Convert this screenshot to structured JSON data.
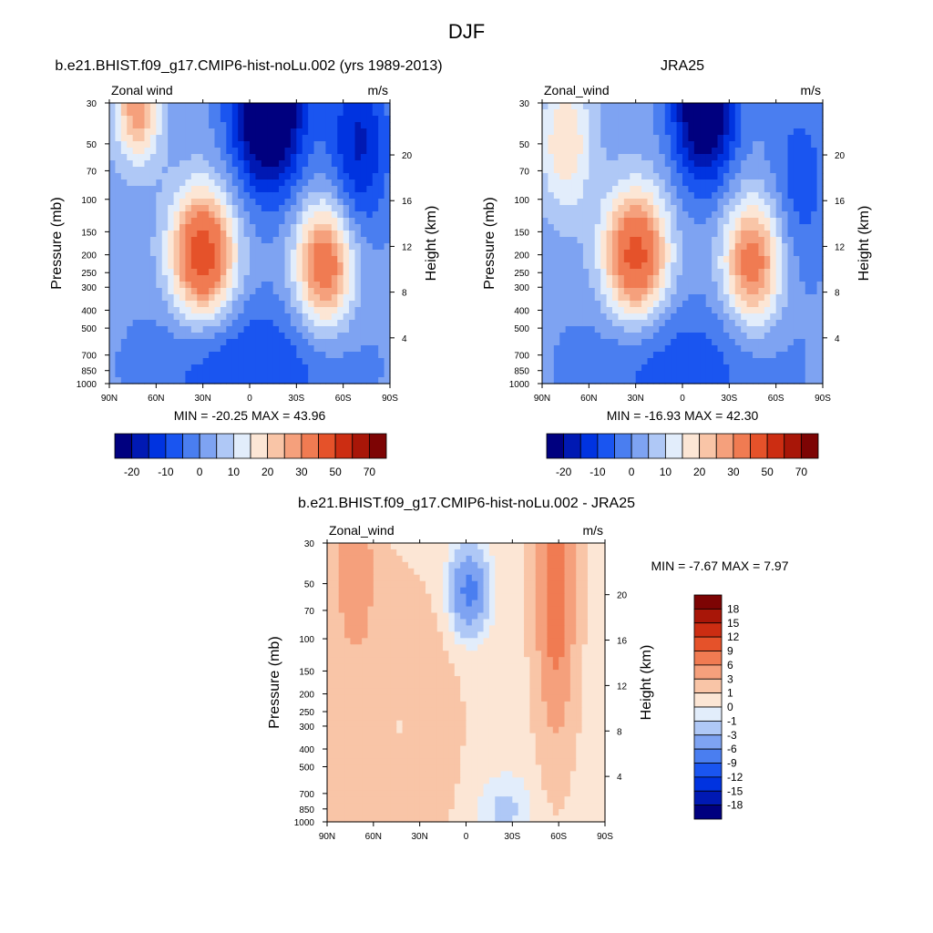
{
  "figure_title": "DJF",
  "palette_main": [
    "#00007f",
    "#0019b3",
    "#0033e0",
    "#1a55f0",
    "#4a7ef0",
    "#7ea3f2",
    "#afc8f6",
    "#e2edfb",
    "#fce6d5",
    "#f9c5a7",
    "#f5a07c",
    "#f07b52",
    "#e5522a",
    "#cc2d12",
    "#a81608",
    "#7d0404"
  ],
  "palette_diff": [
    "#00007f",
    "#0019b3",
    "#0033e0",
    "#1a55f0",
    "#4a7ef0",
    "#7ea3f2",
    "#afc8f6",
    "#e2edfb",
    "#fce6d5",
    "#f9c5a7",
    "#f5a07c",
    "#f07b52",
    "#e5522a",
    "#cc2d12",
    "#a81608",
    "#7d0404"
  ],
  "chart_data": [
    {
      "type": "heatmap",
      "title": "b.e21.BHIST.f09_g17.CMIP6-hist-noLu.002 (yrs 1989-2013)",
      "left_label": "Zonal wind",
      "right_label": "m/s",
      "ylabel": "Pressure (mb)",
      "ylabel_right": "Height (km)",
      "x_ticks": [
        "90N",
        "60N",
        "30N",
        "0",
        "30S",
        "60S",
        "90S"
      ],
      "x_range": [
        90,
        -90
      ],
      "y_ticks": [
        "30",
        "50",
        "70",
        "100",
        "150",
        "200",
        "250",
        "300",
        "400",
        "500",
        "700",
        "850",
        "1000"
      ],
      "y_values": [
        30,
        50,
        70,
        100,
        150,
        200,
        250,
        300,
        400,
        500,
        700,
        850,
        1000
      ],
      "y_range": [
        30,
        1000
      ],
      "height_ticks": [
        "4",
        "8",
        "12",
        "16",
        "20"
      ],
      "height_values": [
        4,
        8,
        12,
        16,
        20
      ],
      "stats_text": "MIN = -20.25  MAX =  43.96",
      "min": -20.25,
      "max": 43.96,
      "levels": [
        -25,
        -20,
        -15,
        -10,
        -5,
        0,
        5,
        10,
        15,
        20,
        25,
        30,
        40,
        50,
        60,
        70
      ],
      "colorbar_labels": [
        "-20",
        "-10",
        "0",
        "10",
        "20",
        "30",
        "50",
        "70"
      ],
      "field": {
        "jets": [
          {
            "lat": 30,
            "p": 200,
            "amp": 43.96,
            "wlat": 14,
            "wp": 0.55
          },
          {
            "lat": -48,
            "p": 230,
            "amp": 35,
            "wlat": 13,
            "wp": 0.55
          },
          {
            "lat": 72,
            "p": 30,
            "amp": 28,
            "wlat": 10,
            "wp": 0.5
          }
        ],
        "troughs": [
          {
            "lat": -12,
            "p": 30,
            "amp": -40,
            "wlat": 16,
            "wp": 0.75
          },
          {
            "lat": 0,
            "p": 800,
            "amp": -12,
            "wlat": 45,
            "wp": 0.6
          },
          {
            "lat": -70,
            "p": 50,
            "amp": -18,
            "wlat": 14,
            "wp": 0.8
          }
        ],
        "base": 2
      }
    },
    {
      "type": "heatmap",
      "title": "JRA25",
      "left_label": "Zonal_wind",
      "right_label": "m/s",
      "ylabel": "Pressure (mb)",
      "ylabel_right": "Height (km)",
      "x_ticks": [
        "90N",
        "60N",
        "30N",
        "0",
        "30S",
        "60S",
        "90S"
      ],
      "x_range": [
        90,
        -90
      ],
      "y_ticks": [
        "30",
        "50",
        "70",
        "100",
        "150",
        "200",
        "250",
        "300",
        "400",
        "500",
        "700",
        "850",
        "1000"
      ],
      "y_values": [
        30,
        50,
        70,
        100,
        150,
        200,
        250,
        300,
        400,
        500,
        700,
        850,
        1000
      ],
      "y_range": [
        30,
        1000
      ],
      "height_ticks": [
        "4",
        "8",
        "12",
        "16",
        "20"
      ],
      "height_values": [
        4,
        8,
        12,
        16,
        20
      ],
      "stats_text": "MIN = -16.93  MAX =  42.30",
      "min": -16.93,
      "max": 42.3,
      "levels": [
        -25,
        -20,
        -15,
        -10,
        -5,
        0,
        5,
        10,
        15,
        20,
        25,
        30,
        40,
        50,
        60,
        70
      ],
      "colorbar_labels": [
        "-20",
        "-10",
        "0",
        "10",
        "20",
        "30",
        "50",
        "70"
      ],
      "field": {
        "jets": [
          {
            "lat": 30,
            "p": 200,
            "amp": 42.3,
            "wlat": 14,
            "wp": 0.55
          },
          {
            "lat": -45,
            "p": 220,
            "amp": 33,
            "wlat": 13,
            "wp": 0.55
          },
          {
            "lat": 75,
            "p": 50,
            "amp": 18,
            "wlat": 12,
            "wp": 0.6
          }
        ],
        "troughs": [
          {
            "lat": -14,
            "p": 30,
            "amp": -34,
            "wlat": 14,
            "wp": 0.7
          },
          {
            "lat": 2,
            "p": 800,
            "amp": -10,
            "wlat": 45,
            "wp": 0.6
          },
          {
            "lat": -75,
            "p": 80,
            "amp": -10,
            "wlat": 14,
            "wp": 0.8
          }
        ],
        "base": 2
      }
    },
    {
      "type": "heatmap",
      "title": "b.e21.BHIST.f09_g17.CMIP6-hist-noLu.002 - JRA25",
      "left_label": "Zonal_wind",
      "right_label": "m/s",
      "ylabel": "Pressure (mb)",
      "ylabel_right": "Height (km)",
      "x_ticks": [
        "90N",
        "60N",
        "30N",
        "0",
        "30S",
        "60S",
        "90S"
      ],
      "x_range": [
        90,
        -90
      ],
      "y_ticks": [
        "30",
        "50",
        "70",
        "100",
        "150",
        "200",
        "250",
        "300",
        "400",
        "500",
        "700",
        "850",
        "1000"
      ],
      "y_values": [
        30,
        50,
        70,
        100,
        150,
        200,
        250,
        300,
        400,
        500,
        700,
        850,
        1000
      ],
      "y_range": [
        30,
        1000
      ],
      "height_ticks": [
        "4",
        "8",
        "12",
        "16",
        "20"
      ],
      "height_values": [
        4,
        8,
        12,
        16,
        20
      ],
      "stats_text": "MIN =  -7.67  MAX =   7.97",
      "min": -7.67,
      "max": 7.97,
      "levels": [
        -21,
        -18,
        -15,
        -12,
        -9,
        -6,
        -3,
        -1,
        0,
        1,
        3,
        6,
        9,
        12,
        15,
        18
      ],
      "colorbar_labels": [
        "18",
        "15",
        "12",
        "9",
        "6",
        "3",
        "1",
        "0",
        "-1",
        "-3",
        "-6",
        "-9",
        "-12",
        "-15",
        "-18"
      ],
      "field": {
        "jets": [
          {
            "lat": -58,
            "p": 50,
            "amp": 7.97,
            "wlat": 8,
            "wp": 1.2
          },
          {
            "lat": 72,
            "p": 40,
            "amp": 5,
            "wlat": 8,
            "wp": 0.6
          },
          {
            "lat": 55,
            "p": 300,
            "amp": 2,
            "wlat": 30,
            "wp": 1.2
          }
        ],
        "troughs": [
          {
            "lat": -2,
            "p": 55,
            "amp": -7.67,
            "wlat": 8,
            "wp": 0.35
          },
          {
            "lat": -25,
            "p": 850,
            "amp": -2,
            "wlat": 12,
            "wp": 0.3
          },
          {
            "lat": 45,
            "p": 300,
            "amp": -1.5,
            "wlat": 8,
            "wp": 0.6
          }
        ],
        "base": 0.6
      }
    }
  ]
}
